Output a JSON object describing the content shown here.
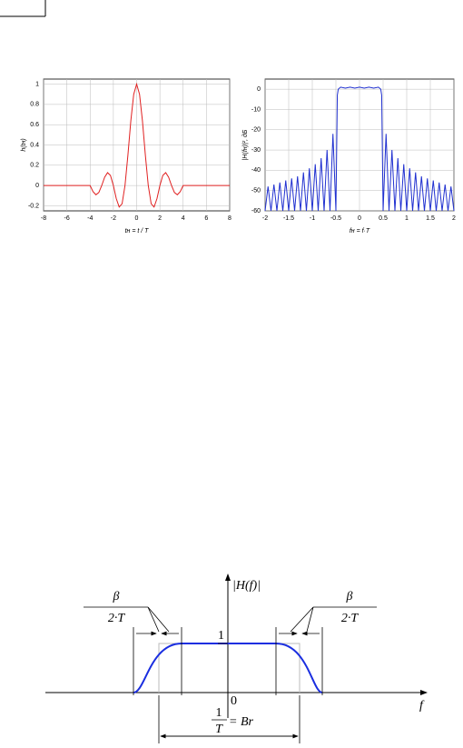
{
  "chart_data": [
    {
      "type": "line",
      "ylabel": "h(tн)",
      "xlabel": "tн = t / T",
      "xlim": [
        -8,
        8
      ],
      "ylim": [
        -0.25,
        1.05
      ],
      "xticks": [
        -8,
        -6,
        -4,
        -2,
        0,
        2,
        4,
        6,
        8
      ],
      "yticks": [
        -0.2,
        0,
        0.2,
        0.4,
        0.6,
        0.8,
        1
      ],
      "grid": true,
      "x": [
        -8,
        -4,
        -3.75,
        -3.5,
        -3.25,
        -3,
        -2.75,
        -2.5,
        -2.25,
        -2,
        -1.75,
        -1.5,
        -1.25,
        -1,
        -0.75,
        -0.5,
        -0.25,
        0,
        0.25,
        0.5,
        0.75,
        1,
        1.25,
        1.5,
        1.75,
        2,
        2.25,
        2.5,
        2.75,
        3,
        3.25,
        3.5,
        3.75,
        4,
        8
      ],
      "series": [
        {
          "color": "#e02020",
          "values": [
            0,
            0,
            -0.06,
            -0.091,
            -0.069,
            0,
            0.082,
            0.127,
            0.1,
            0,
            -0.129,
            -0.212,
            -0.18,
            0,
            0.3,
            0.637,
            0.9,
            1,
            0.9,
            0.637,
            0.3,
            0,
            -0.18,
            -0.212,
            -0.129,
            0,
            0.1,
            0.127,
            0.082,
            0,
            -0.069,
            -0.091,
            -0.06,
            0,
            0
          ]
        }
      ]
    },
    {
      "type": "line",
      "ylabel": "|H(fн)|², дБ",
      "xlabel": "fн = f·T",
      "xlim": [
        -2,
        2
      ],
      "ylim": [
        -60,
        5
      ],
      "xticks": [
        -2,
        -1.5,
        -1,
        -0.5,
        0,
        0.5,
        1,
        1.5,
        2
      ],
      "yticks": [
        -60,
        -50,
        -40,
        -30,
        -20,
        -10,
        0
      ],
      "grid": true,
      "x": [
        -2,
        -1.9375,
        -1.875,
        -1.8125,
        -1.75,
        -1.6875,
        -1.625,
        -1.5625,
        -1.5,
        -1.4375,
        -1.375,
        -1.3125,
        -1.25,
        -1.1875,
        -1.125,
        -1.0625,
        -1,
        -0.9375,
        -0.875,
        -0.8125,
        -0.75,
        -0.6875,
        -0.625,
        -0.5625,
        -0.5,
        -0.47,
        -0.45,
        -0.4,
        -0.3,
        -0.2,
        -0.1,
        0,
        0.1,
        0.2,
        0.3,
        0.4,
        0.45,
        0.47,
        0.5,
        0.5625,
        0.625,
        0.6875,
        0.75,
        0.8125,
        0.875,
        0.9375,
        1,
        1.0625,
        1.125,
        1.1875,
        1.25,
        1.3125,
        1.375,
        1.4375,
        1.5,
        1.5625,
        1.625,
        1.6875,
        1.75,
        1.8125,
        1.875,
        1.9375,
        2
      ],
      "series": [
        {
          "color": "#2030d0",
          "values": [
            -60,
            -48,
            -60,
            -47,
            -60,
            -46,
            -60,
            -45,
            -60,
            -44,
            -60,
            -43,
            -60,
            -41,
            -60,
            -39,
            -60,
            -37,
            -60,
            -34,
            -60,
            -30,
            -60,
            -22,
            -60,
            -3,
            0,
            1,
            0.5,
            1,
            0.5,
            1,
            0.5,
            1,
            0.5,
            1,
            0,
            -3,
            -60,
            -22,
            -60,
            -30,
            -60,
            -34,
            -60,
            -37,
            -60,
            -39,
            -60,
            -41,
            -60,
            -43,
            -60,
            -44,
            -60,
            -45,
            -60,
            -46,
            -60,
            -47,
            -60,
            -48,
            -60
          ]
        }
      ]
    }
  ],
  "diagram": {
    "y_axis_label": "|H(f)|",
    "x_axis_label": "f",
    "level_label": "1",
    "origin_label": "0",
    "left_fraction": {
      "numerator": "β",
      "denominator": "2·T"
    },
    "right_fraction": {
      "numerator": "β",
      "denominator": "2·T"
    },
    "width_label": {
      "numerator": "1",
      "denominator": "T",
      "suffix": "= Br"
    }
  }
}
